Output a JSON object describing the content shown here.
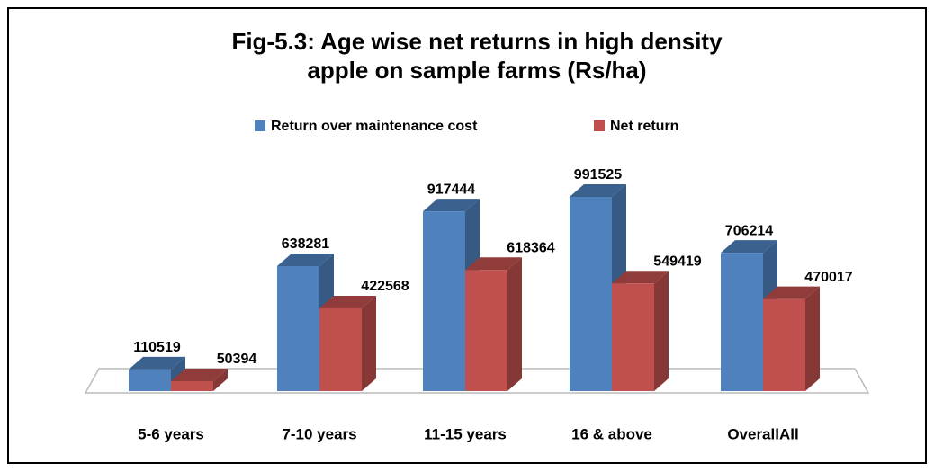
{
  "chart_data": {
    "type": "bar3d",
    "title": "Fig-5.3: Age wise net returns in high density apple on sample farms (Rs/ha)",
    "categories": [
      "5-6 years",
      "7-10 years",
      "11-15 years",
      "16 & above",
      "OverallAll"
    ],
    "series": [
      {
        "name": "Return over maintenance cost",
        "color": "#4f81bd",
        "values": [
          110519,
          638281,
          917444,
          991525,
          706214
        ]
      },
      {
        "name": "Net return",
        "color": "#c0504d",
        "values": [
          50394,
          422568,
          618364,
          549419,
          470017
        ]
      }
    ],
    "legend": "top"
  }
}
